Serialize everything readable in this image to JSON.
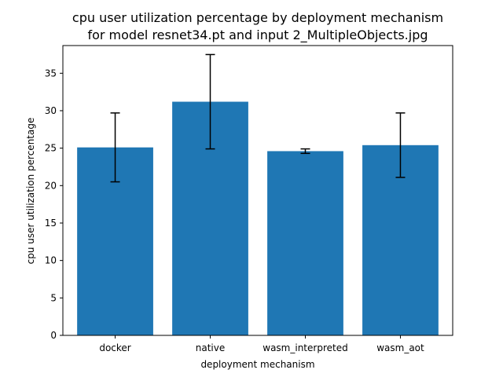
{
  "chart_data": {
    "type": "bar",
    "title": [
      "cpu user utilization percentage by deployment mechanism",
      "for model resnet34.pt and input 2_MultipleObjects.jpg"
    ],
    "xlabel": "deployment mechanism",
    "ylabel": "cpu user utilization percentage",
    "categories": [
      "docker",
      "native",
      "wasm_interpreted",
      "wasm_aot"
    ],
    "values": [
      25.1,
      31.2,
      24.6,
      25.4
    ],
    "error": [
      4.6,
      6.3,
      0.3,
      4.3
    ],
    "ylim": [
      0,
      38.7
    ],
    "yticks": [
      0,
      5,
      10,
      15,
      20,
      25,
      30,
      35
    ],
    "grid": false,
    "colors": {
      "bar": "#1f77b4",
      "errorbar": "#000000",
      "axis": "#000000",
      "background": "#ffffff"
    }
  }
}
